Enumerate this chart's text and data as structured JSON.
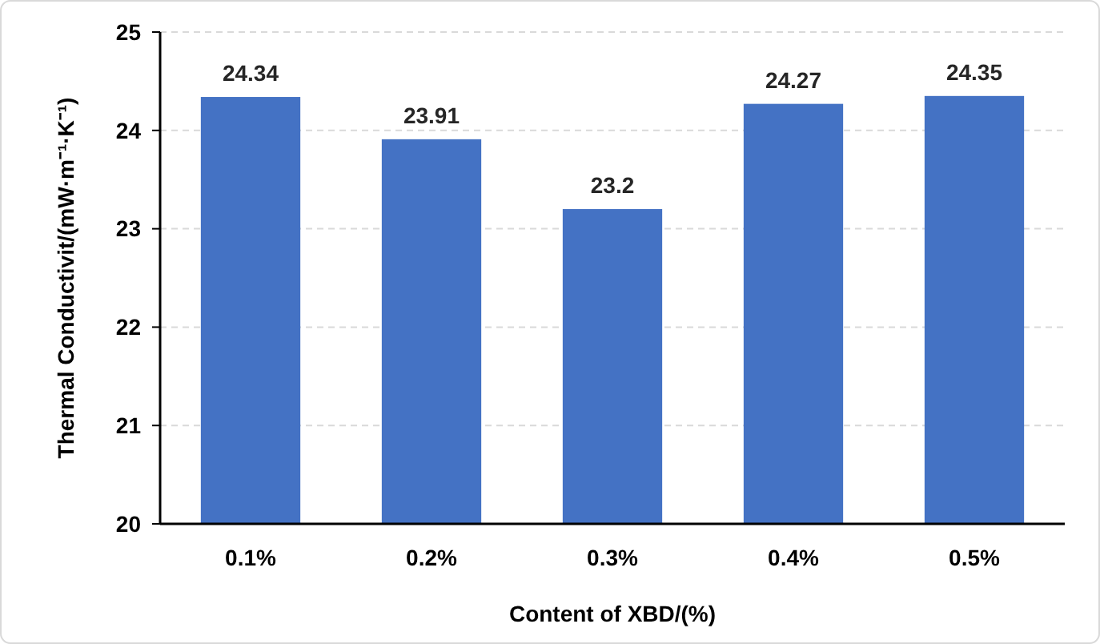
{
  "chart_data": {
    "type": "bar",
    "xlabel": "Content of XBD/(%)",
    "ylabel": "Thermal Conductivit/(mW·m⁻¹·K⁻¹)",
    "categories": [
      "0.1%",
      "0.2%",
      "0.3%",
      "0.4%",
      "0.5%"
    ],
    "values": [
      24.34,
      23.91,
      23.2,
      24.27,
      24.35
    ],
    "color": "#4472c4",
    "ylim": [
      20,
      25
    ],
    "yticks": [
      20,
      21,
      22,
      23,
      24,
      25
    ],
    "grid": "y",
    "data_labels": true
  }
}
